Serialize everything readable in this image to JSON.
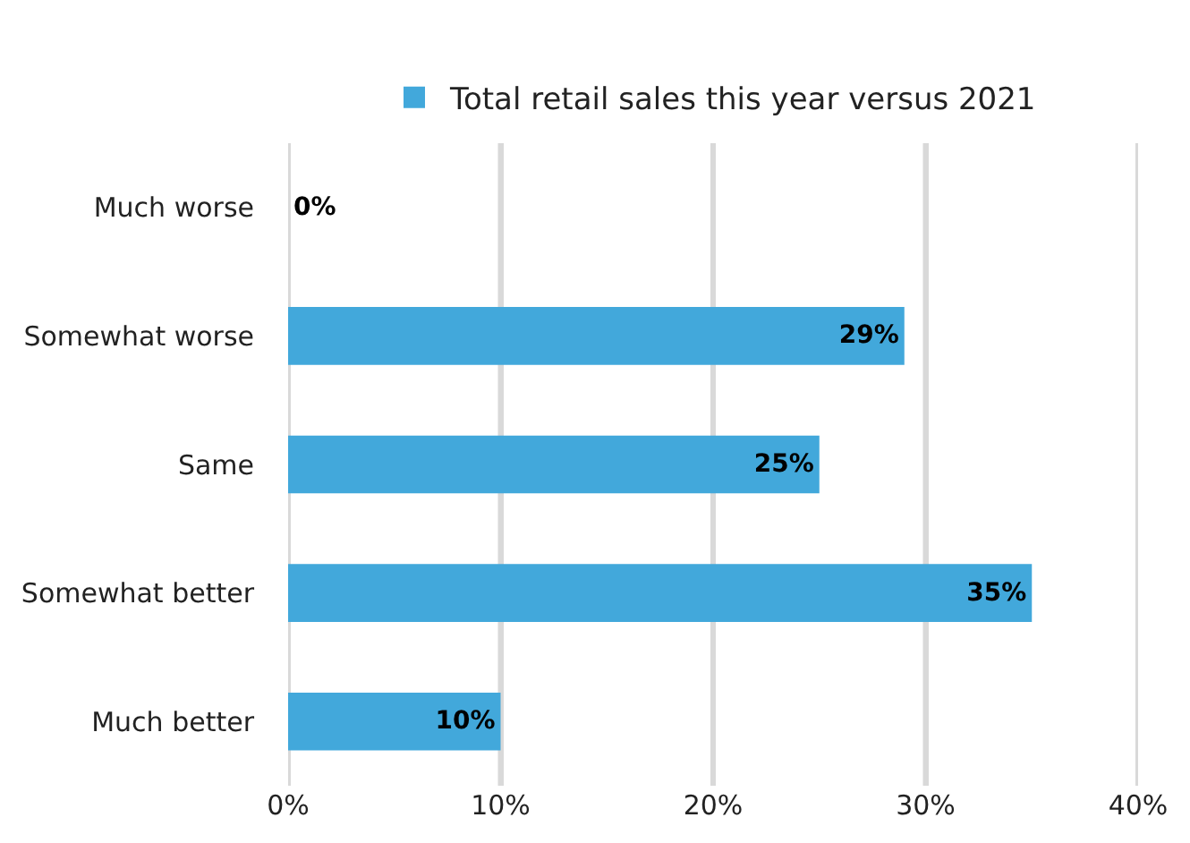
{
  "chart_data": {
    "type": "bar",
    "orientation": "horizontal",
    "categories": [
      "Much worse",
      "Somewhat worse",
      "Same",
      "Somewhat better",
      "Much better"
    ],
    "series": [
      {
        "name": "Total retail sales this year versus 2021",
        "color": "#42a8db",
        "values": [
          0,
          29,
          25,
          35,
          10
        ],
        "value_labels": [
          "0%",
          "29%",
          "25%",
          "35%",
          "10%"
        ]
      }
    ],
    "xlim": [
      0,
      40
    ],
    "xticks": [
      {
        "value": 0,
        "label": "0%"
      },
      {
        "value": 10,
        "label": "10%"
      },
      {
        "value": 20,
        "label": "20%"
      },
      {
        "value": 30,
        "label": "30%"
      },
      {
        "value": 40,
        "label": "40%"
      }
    ],
    "grid": "x",
    "legend": "top"
  }
}
